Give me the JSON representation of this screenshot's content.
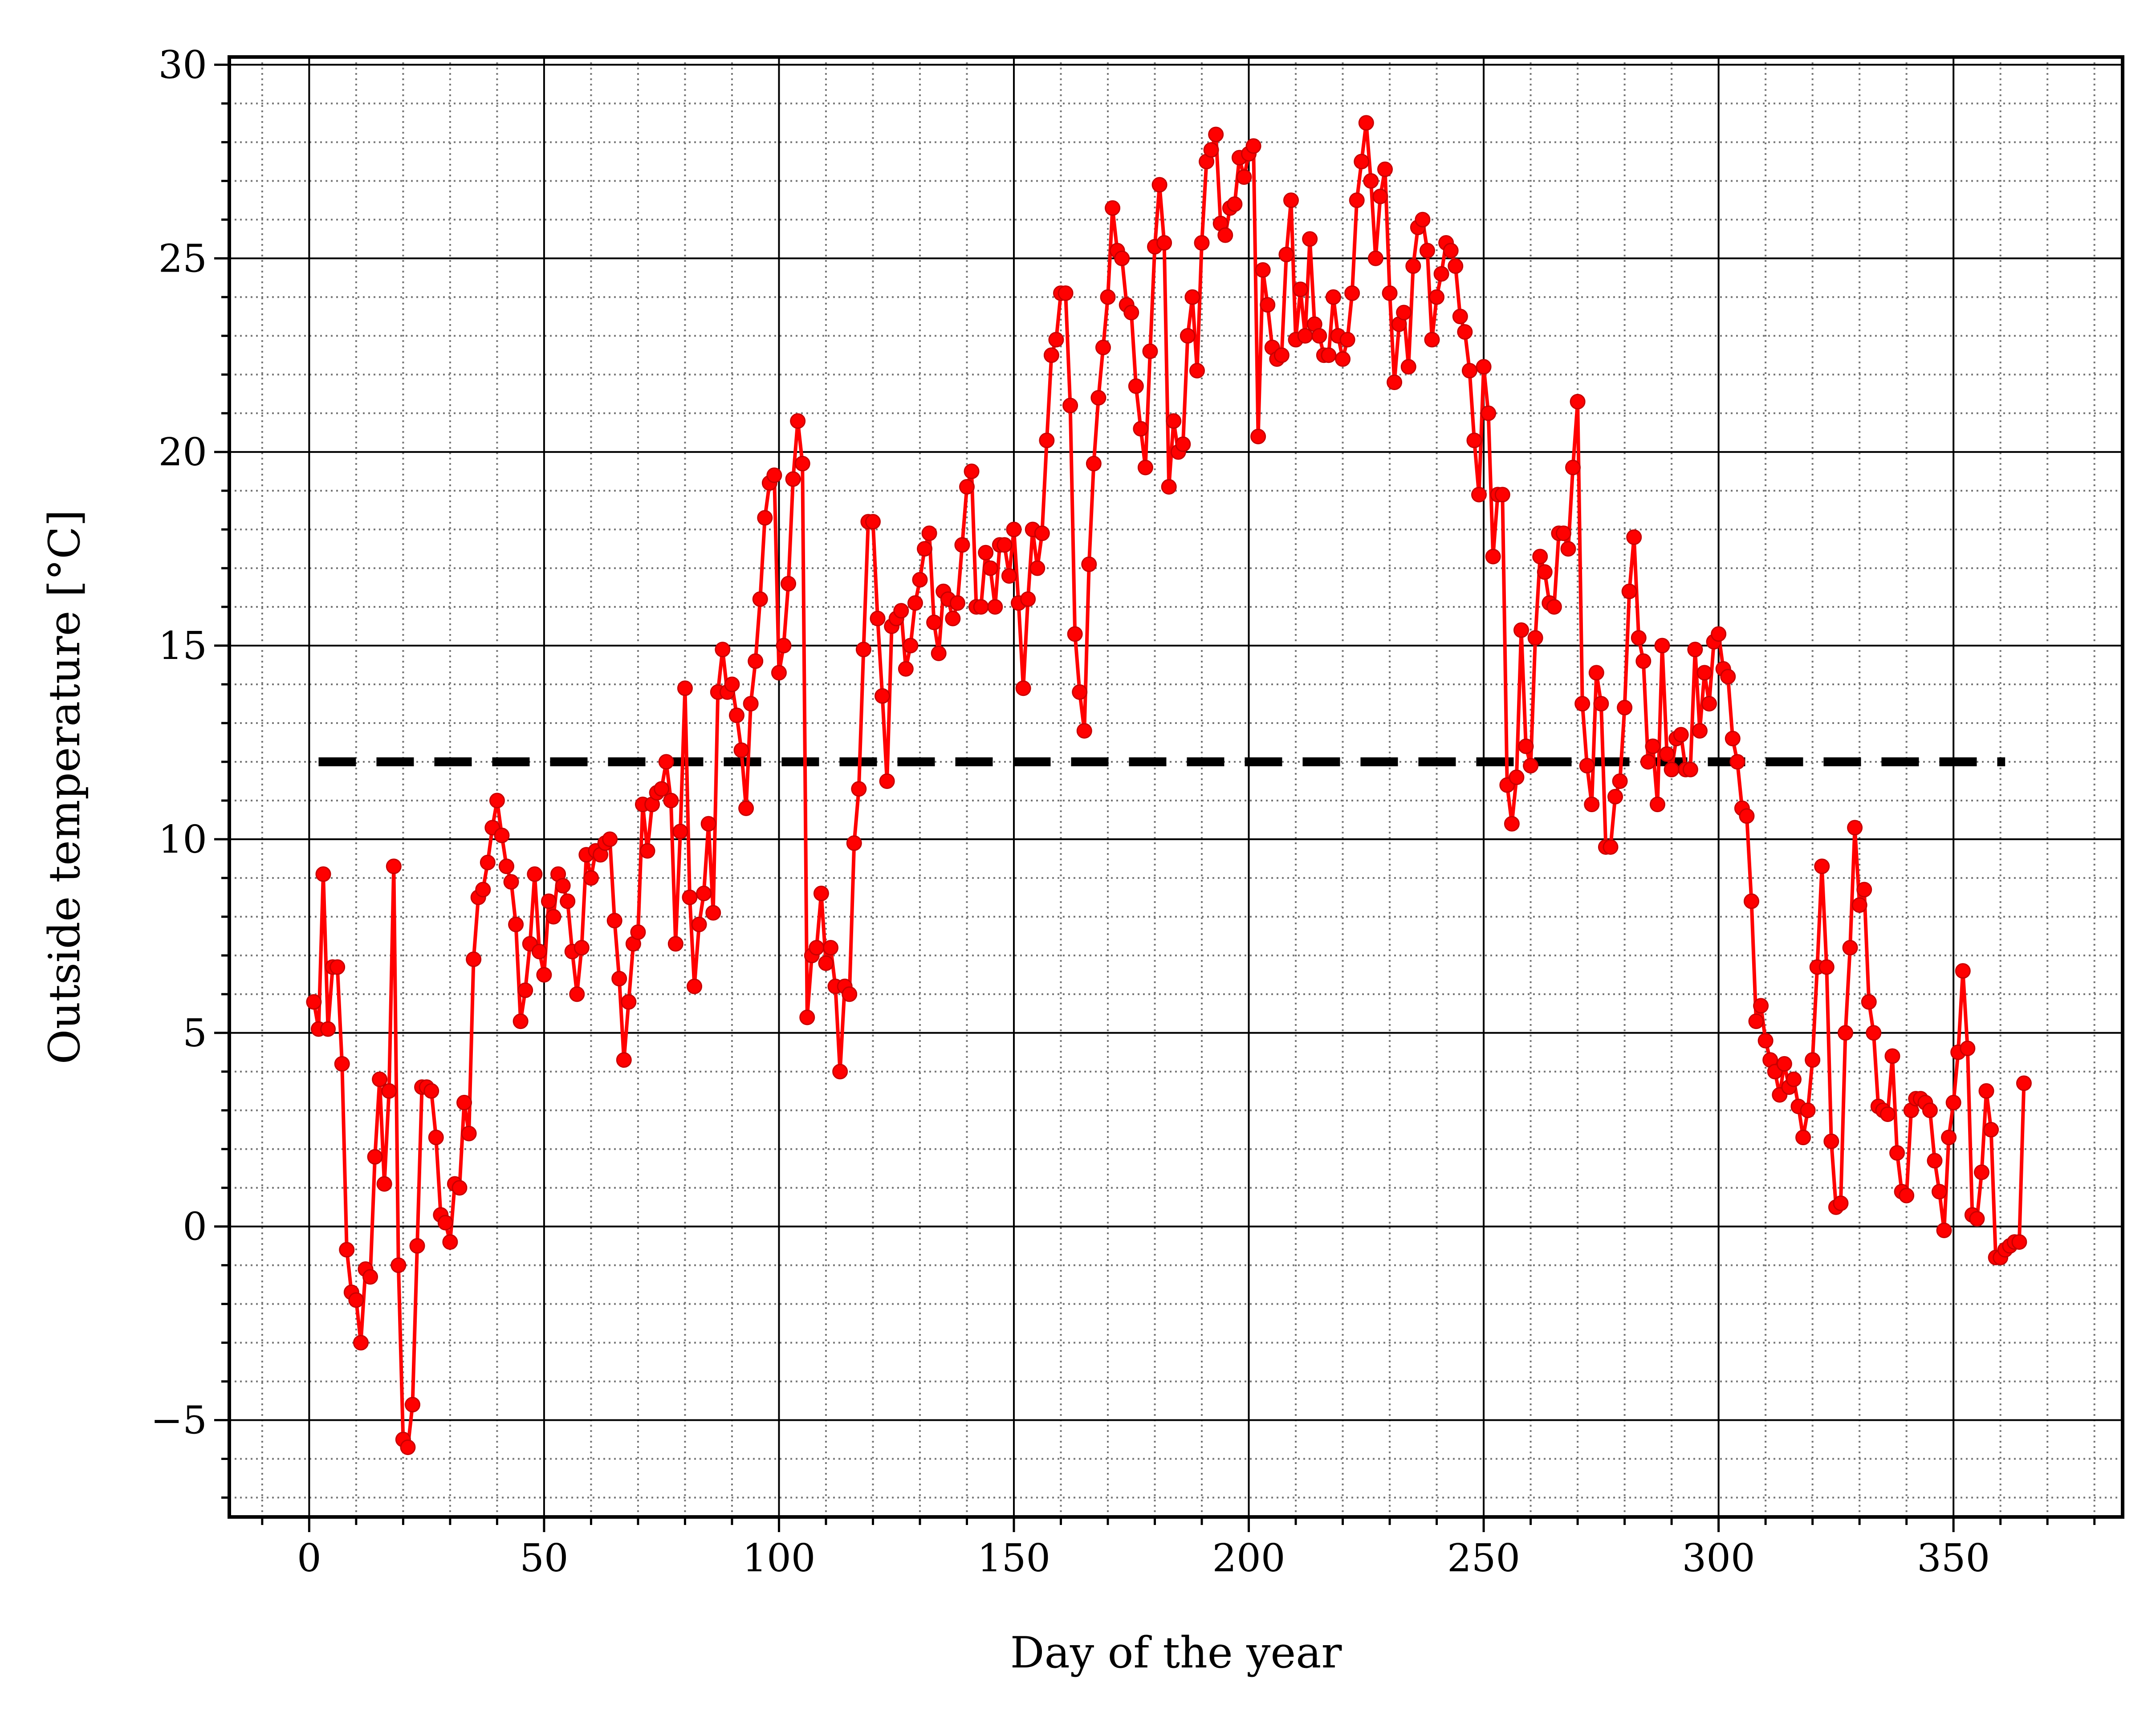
{
  "chart_data": {
    "type": "line",
    "title": "",
    "xlabel": "Day of the year",
    "ylabel": "Outside temperature [°C]",
    "xlim": [
      -17,
      386
    ],
    "ylim": [
      -7.5,
      30.2
    ],
    "x_ticks": [
      0,
      50,
      100,
      150,
      200,
      250,
      300,
      350
    ],
    "x_tick_labels": [
      "0",
      "50",
      "100",
      "150",
      "200",
      "250",
      "300",
      "350"
    ],
    "y_ticks": [
      -5,
      0,
      5,
      10,
      15,
      20,
      25,
      30
    ],
    "y_tick_labels": [
      "−5",
      "0",
      "5",
      "10",
      "15",
      "20",
      "25",
      "30"
    ],
    "grid": {
      "major": true,
      "minor": true,
      "minor_style": "dotted"
    },
    "legend": "none",
    "colors": {
      "series": "#ff0000",
      "threshold": "#000000"
    },
    "series": [
      {
        "type": "line+markers",
        "x_start": 1,
        "x_step": 1,
        "values": [
          5.8,
          5.1,
          9.1,
          5.1,
          6.7,
          6.7,
          4.2,
          -0.6,
          -1.7,
          -1.9,
          -3.0,
          -1.1,
          -1.3,
          1.8,
          3.8,
          1.1,
          3.5,
          9.3,
          -1.0,
          -5.5,
          -5.7,
          -4.6,
          -0.5,
          3.6,
          3.6,
          3.5,
          2.3,
          0.3,
          0.1,
          -0.4,
          1.1,
          1.0,
          3.2,
          2.4,
          6.9,
          8.5,
          8.7,
          9.4,
          10.3,
          11.0,
          10.1,
          9.3,
          8.9,
          7.8,
          5.3,
          6.1,
          7.3,
          9.1,
          7.1,
          6.5,
          8.4,
          8.0,
          9.1,
          8.8,
          8.4,
          7.1,
          6.0,
          7.2,
          9.6,
          9.0,
          9.7,
          9.6,
          9.9,
          10.0,
          7.9,
          6.4,
          4.3,
          5.8,
          7.3,
          7.6,
          10.9,
          9.7,
          10.9,
          11.2,
          11.3,
          12.0,
          11.0,
          7.3,
          10.2,
          13.9,
          8.5,
          6.2,
          7.8,
          8.6,
          10.4,
          8.1,
          13.8,
          14.9,
          13.8,
          14.0,
          13.2,
          12.3,
          10.8,
          13.5,
          14.6,
          16.2,
          18.3,
          19.2,
          19.4,
          14.3,
          15.0,
          16.6,
          19.3,
          20.8,
          19.7,
          5.4,
          7.0,
          7.2,
          8.6,
          6.8,
          7.2,
          6.2,
          4.0,
          6.2,
          6.0,
          9.9,
          11.3,
          14.9,
          18.2,
          18.2,
          15.7,
          13.7,
          11.5,
          15.5,
          15.7,
          15.9,
          14.4,
          15.0,
          16.1,
          16.7,
          17.5,
          17.9,
          15.6,
          14.8,
          16.4,
          16.2,
          15.7,
          16.1,
          17.6,
          19.1,
          19.5,
          16.0,
          16.0,
          17.4,
          17.0,
          16.0,
          17.6,
          17.6,
          16.8,
          18.0,
          16.1,
          13.9,
          16.2,
          18.0,
          17.0,
          17.9,
          20.3,
          22.5,
          22.9,
          24.1,
          24.1,
          21.2,
          15.3,
          13.8,
          12.8,
          17.1,
          19.7,
          21.4,
          22.7,
          24.0,
          26.3,
          25.2,
          25.0,
          23.8,
          23.6,
          21.7,
          20.6,
          19.6,
          22.6,
          25.3,
          26.9,
          25.4,
          19.1,
          20.8,
          20.0,
          20.2,
          23.0,
          24.0,
          22.1,
          25.4,
          27.5,
          27.8,
          28.2,
          25.9,
          25.6,
          26.3,
          26.4,
          27.6,
          27.1,
          27.7,
          27.9,
          20.4,
          24.7,
          23.8,
          22.7,
          22.4,
          22.5,
          25.1,
          26.5,
          22.9,
          24.2,
          23.0,
          25.5,
          23.3,
          23.0,
          22.5,
          22.5,
          24.0,
          23.0,
          22.4,
          22.9,
          24.1,
          26.5,
          27.5,
          28.5,
          27.0,
          25.0,
          26.6,
          27.3,
          24.1,
          21.8,
          23.3,
          23.6,
          22.2,
          24.8,
          25.8,
          26.0,
          25.2,
          22.9,
          24.0,
          24.6,
          25.4,
          25.2,
          24.8,
          23.5,
          23.1,
          22.1,
          20.3,
          18.9,
          22.2,
          21.0,
          17.3,
          18.9,
          18.9,
          11.4,
          10.4,
          11.6,
          15.4,
          12.4,
          11.9,
          15.2,
          17.3,
          16.9,
          16.1,
          16.0,
          17.9,
          17.9,
          17.5,
          19.6,
          21.3,
          13.5,
          11.9,
          10.9,
          14.3,
          13.5,
          9.8,
          9.8,
          11.1,
          11.5,
          13.4,
          16.4,
          17.8,
          15.2,
          14.6,
          12.0,
          12.4,
          10.9,
          15.0,
          12.2,
          11.8,
          12.6,
          12.7,
          11.8,
          11.8,
          14.9,
          12.8,
          14.3,
          13.5,
          15.1,
          15.3,
          14.4,
          14.2,
          12.6,
          12.0,
          10.8,
          10.6,
          8.4,
          5.3,
          5.7,
          4.8,
          4.3,
          4.0,
          3.4,
          4.2,
          3.6,
          3.8,
          3.1,
          2.3,
          3.0,
          4.3,
          6.7,
          9.3,
          6.7,
          2.2,
          0.5,
          0.6,
          5.0,
          7.2,
          10.3,
          8.3,
          8.7,
          5.8,
          5.0,
          3.1,
          3.0,
          2.9,
          4.4,
          1.9,
          0.9,
          0.8,
          3.0,
          3.3,
          3.3,
          3.2,
          3.0,
          1.7,
          0.9,
          -0.1,
          2.3,
          3.2,
          4.5,
          6.6,
          4.6,
          0.3,
          0.2,
          1.4,
          3.5,
          2.5,
          -0.8,
          -0.8,
          -0.6,
          -0.5,
          -0.4,
          -0.4,
          3.7
        ]
      },
      {
        "type": "threshold-dashed",
        "x": [
          2,
          361
        ],
        "y": [
          12,
          12
        ]
      }
    ]
  }
}
